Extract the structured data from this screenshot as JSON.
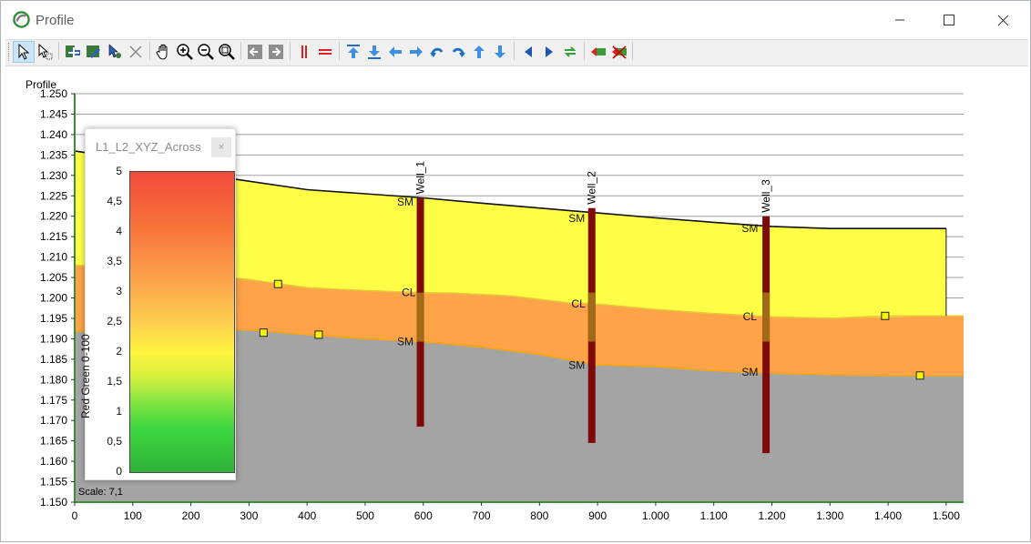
{
  "window": {
    "title": "Profile",
    "controls": [
      "minimize",
      "maximize",
      "close"
    ]
  },
  "toolbar": {
    "groups": [
      [
        "select-arrow-icon",
        "select-extra-icon"
      ],
      [
        "add-section-icon",
        "edit-section-icon",
        "settings-section-icon",
        "delete-icon"
      ],
      [
        "pan-hand-icon",
        "zoom-in-icon",
        "zoom-out-icon",
        "zoom-extent-icon"
      ],
      [
        "move-left-icon",
        "move-right-icon"
      ],
      [
        "vertical-scale-icon",
        "horizontal-scale-icon"
      ],
      [
        "move-top-icon",
        "move-bottom-icon",
        "arrow-left-icon",
        "arrow-right-icon",
        "undo-icon",
        "redo-icon",
        "arrow-up-icon",
        "arrow-down-icon"
      ],
      [
        "previous-icon",
        "next-icon",
        "refresh-icon"
      ],
      [
        "show-layer-icon",
        "hide-layer-icon"
      ]
    ]
  },
  "plot": {
    "y_axis_title": "Profile",
    "scale_label": "Scale: 7,1",
    "y_ticks": [
      "1.250",
      "1.245",
      "1.240",
      "1.235",
      "1.230",
      "1.225",
      "1.220",
      "1.215",
      "1.210",
      "1.205",
      "1.200",
      "1.195",
      "1.190",
      "1.185",
      "1.180",
      "1.175",
      "1.170",
      "1.165",
      "1.160",
      "1.155",
      "1.150"
    ],
    "x_ticks": [
      "0",
      "100",
      "200",
      "300",
      "400",
      "500",
      "600",
      "700",
      "800",
      "900",
      "1.000",
      "1.100",
      "1.200",
      "1.300",
      "1.400",
      "1.500"
    ]
  },
  "layers": {
    "labels": [
      {
        "text": "SM",
        "x": 555,
        "y": 1.2235
      },
      {
        "text": "CL",
        "x": 563,
        "y": 1.2013
      },
      {
        "text": "SM",
        "x": 555,
        "y": 1.1893
      },
      {
        "text": "SM",
        "x": 850,
        "y": 1.2195
      },
      {
        "text": "CL",
        "x": 855,
        "y": 1.1986
      },
      {
        "text": "SM",
        "x": 850,
        "y": 1.1835
      },
      {
        "text": "SM",
        "x": 1148,
        "y": 1.217
      },
      {
        "text": "CL",
        "x": 1150,
        "y": 1.1954
      },
      {
        "text": "SM",
        "x": 1148,
        "y": 1.1818
      }
    ],
    "colors": {
      "top": "#fefe47",
      "middle": "#fea347",
      "bottom": "#a4a4a4",
      "contact": "#ffa500"
    }
  },
  "wells": [
    {
      "name": "Well_1",
      "x": 595,
      "top": 1.2245,
      "bottom": 1.1685
    },
    {
      "name": "Well_2",
      "x": 890,
      "top": 1.222,
      "bottom": 1.1645
    },
    {
      "name": "Well_3",
      "x": 1190,
      "top": 1.22,
      "bottom": 1.162
    }
  ],
  "markers": [
    {
      "x": 350,
      "y": 1.2034
    },
    {
      "x": 325,
      "y": 1.1915
    },
    {
      "x": 420,
      "y": 1.191
    },
    {
      "x": 1395,
      "y": 1.1956
    },
    {
      "x": 1455,
      "y": 1.181
    }
  ],
  "legend": {
    "title": "L1_L2_XYZ_Across",
    "close": "×",
    "vertical_label": "Red Green 0-100",
    "ticks": [
      "5",
      "4,5",
      "4",
      "3,5",
      "3",
      "2,5",
      "2",
      "1,5",
      "1",
      "0,5",
      "0"
    ]
  }
}
